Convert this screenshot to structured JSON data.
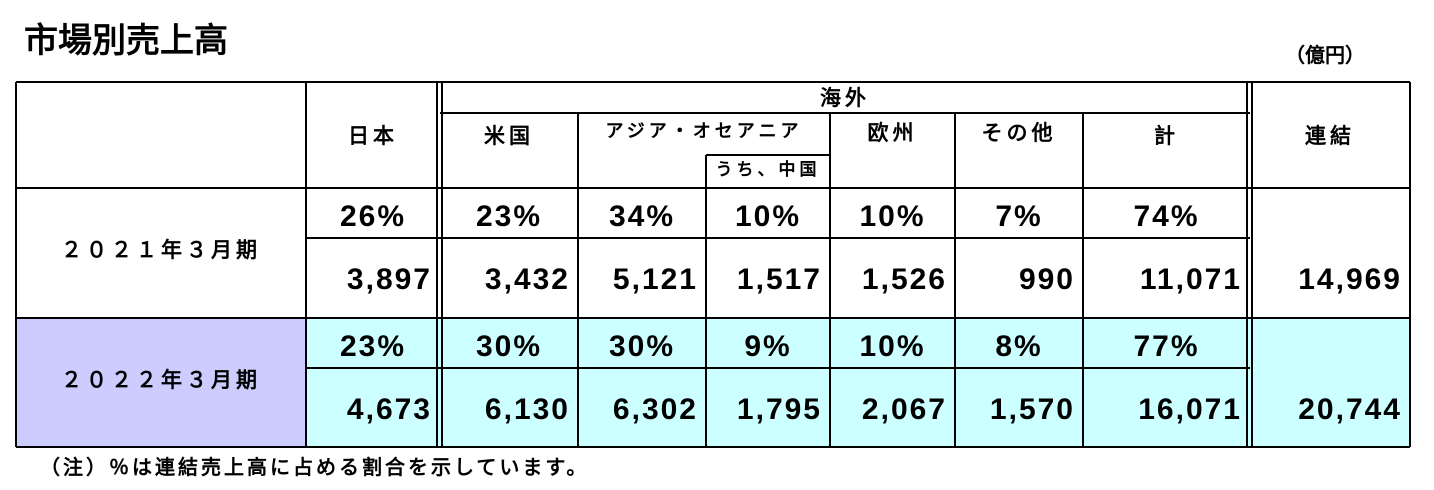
{
  "title": "市場別売上高",
  "unit": "（億円）",
  "header": {
    "overseas": "海外",
    "columns": [
      "日本",
      "米国",
      "アジア・オセアニア",
      "うち、中国",
      "欧州",
      "その他",
      "計",
      "連結"
    ]
  },
  "rows": [
    {
      "label": "２０２１年３月期",
      "shares": [
        "26%",
        "23%",
        "34%",
        "10%",
        "10%",
        "7%",
        "74%"
      ],
      "values": [
        "3,897",
        "3,432",
        "5,121",
        "1,517",
        "1,526",
        "990",
        "11,071"
      ],
      "total": "14,969"
    },
    {
      "label": "２０２２年３月期",
      "shares": [
        "23%",
        "30%",
        "30%",
        "9%",
        "10%",
        "8%",
        "77%"
      ],
      "values": [
        "4,673",
        "6,130",
        "6,302",
        "1,795",
        "2,067",
        "1,570",
        "16,071"
      ],
      "total": "20,744"
    }
  ],
  "note": "（注）％は連結売上高に占める割合を示しています。"
}
